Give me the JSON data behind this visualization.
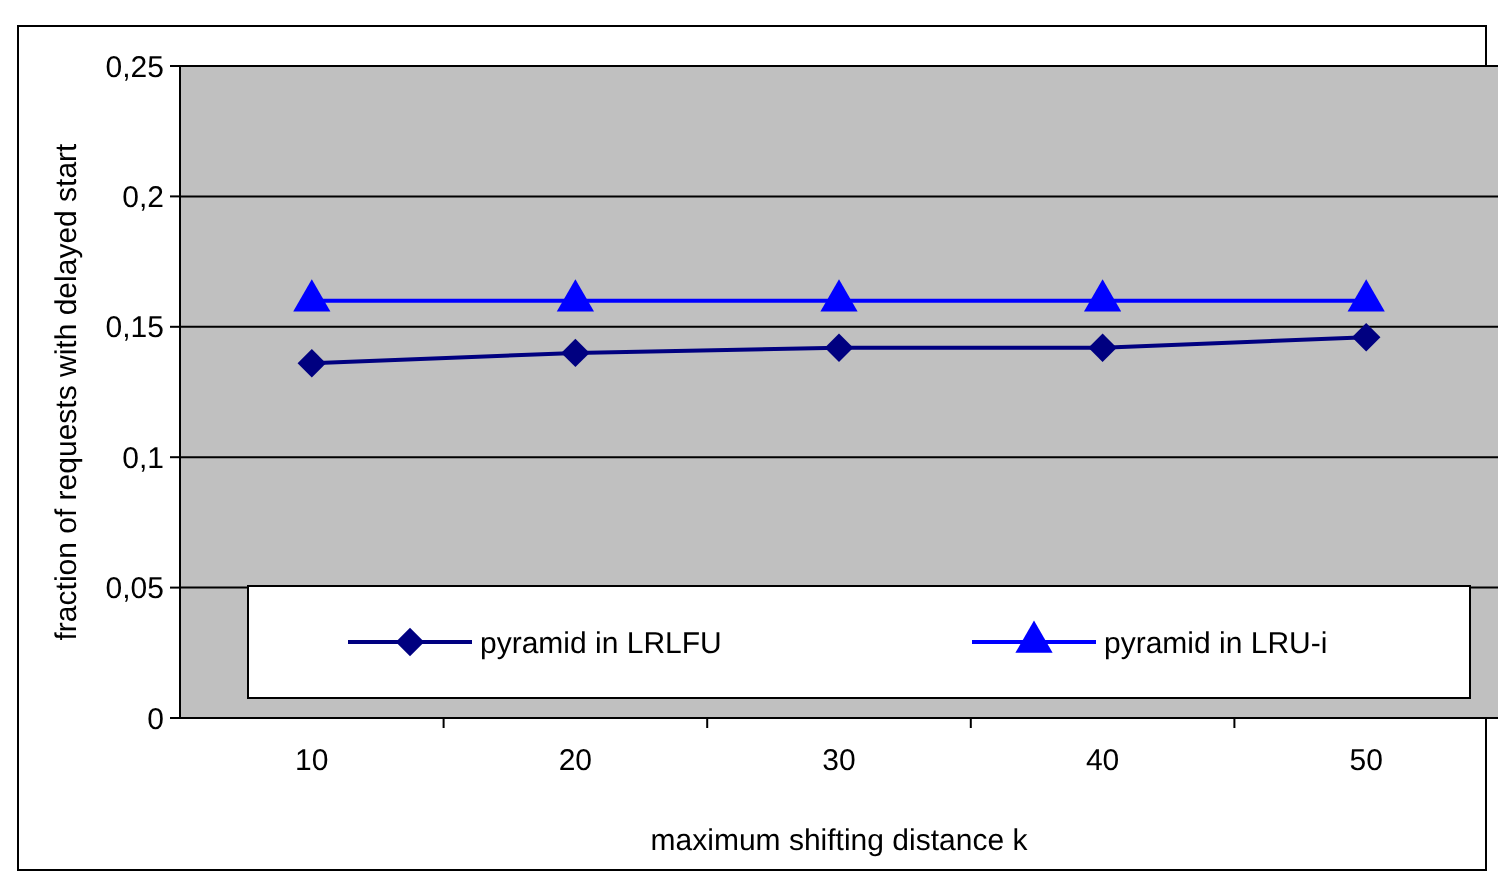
{
  "chart_data": {
    "type": "line",
    "xlabel": "maximum shifting distance k",
    "ylabel": "fraction of requests with delayed start",
    "categories": [
      "10",
      "20",
      "30",
      "40",
      "50"
    ],
    "series": [
      {
        "name": "pyramid in LRLFU",
        "color": "#000080",
        "marker": "diamond",
        "values": [
          0.136,
          0.14,
          0.142,
          0.142,
          0.146
        ]
      },
      {
        "name": "pyramid in LRU-i",
        "color": "#0000ff",
        "marker": "triangle",
        "values": [
          0.16,
          0.16,
          0.16,
          0.16,
          0.16
        ]
      }
    ],
    "ylim": [
      0,
      0.25
    ],
    "yticks": [
      {
        "value": 0,
        "label": "0"
      },
      {
        "value": 0.05,
        "label": "0,05"
      },
      {
        "value": 0.1,
        "label": "0,1"
      },
      {
        "value": 0.15,
        "label": "0,15"
      },
      {
        "value": 0.2,
        "label": "0,2"
      },
      {
        "value": 0.25,
        "label": "0,25"
      }
    ],
    "grid": "y",
    "legend": "bottom",
    "line_style": "solid"
  }
}
